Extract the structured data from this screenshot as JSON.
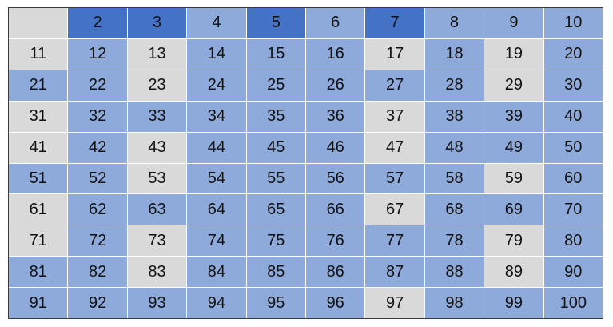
{
  "colors": {
    "prime": "#4472c4",
    "composite": "#8eaadb",
    "unmarked": "#d9d9d9"
  },
  "cells": [
    {
      "label": "",
      "status": "unmarked"
    },
    {
      "label": "2",
      "status": "prime"
    },
    {
      "label": "3",
      "status": "prime"
    },
    {
      "label": "4",
      "status": "composite"
    },
    {
      "label": "5",
      "status": "prime"
    },
    {
      "label": "6",
      "status": "composite"
    },
    {
      "label": "7",
      "status": "prime"
    },
    {
      "label": "8",
      "status": "composite"
    },
    {
      "label": "9",
      "status": "composite"
    },
    {
      "label": "10",
      "status": "composite"
    },
    {
      "label": "11",
      "status": "unmarked"
    },
    {
      "label": "12",
      "status": "composite"
    },
    {
      "label": "13",
      "status": "unmarked"
    },
    {
      "label": "14",
      "status": "composite"
    },
    {
      "label": "15",
      "status": "composite"
    },
    {
      "label": "16",
      "status": "composite"
    },
    {
      "label": "17",
      "status": "unmarked"
    },
    {
      "label": "18",
      "status": "composite"
    },
    {
      "label": "19",
      "status": "unmarked"
    },
    {
      "label": "20",
      "status": "composite"
    },
    {
      "label": "21",
      "status": "composite"
    },
    {
      "label": "22",
      "status": "composite"
    },
    {
      "label": "23",
      "status": "unmarked"
    },
    {
      "label": "24",
      "status": "composite"
    },
    {
      "label": "25",
      "status": "composite"
    },
    {
      "label": "26",
      "status": "composite"
    },
    {
      "label": "27",
      "status": "composite"
    },
    {
      "label": "28",
      "status": "composite"
    },
    {
      "label": "29",
      "status": "unmarked"
    },
    {
      "label": "30",
      "status": "composite"
    },
    {
      "label": "31",
      "status": "unmarked"
    },
    {
      "label": "32",
      "status": "composite"
    },
    {
      "label": "33",
      "status": "composite"
    },
    {
      "label": "34",
      "status": "composite"
    },
    {
      "label": "35",
      "status": "composite"
    },
    {
      "label": "36",
      "status": "composite"
    },
    {
      "label": "37",
      "status": "unmarked"
    },
    {
      "label": "38",
      "status": "composite"
    },
    {
      "label": "39",
      "status": "composite"
    },
    {
      "label": "40",
      "status": "composite"
    },
    {
      "label": "41",
      "status": "unmarked"
    },
    {
      "label": "42",
      "status": "composite"
    },
    {
      "label": "43",
      "status": "unmarked"
    },
    {
      "label": "44",
      "status": "composite"
    },
    {
      "label": "45",
      "status": "composite"
    },
    {
      "label": "46",
      "status": "composite"
    },
    {
      "label": "47",
      "status": "unmarked"
    },
    {
      "label": "48",
      "status": "composite"
    },
    {
      "label": "49",
      "status": "composite"
    },
    {
      "label": "50",
      "status": "composite"
    },
    {
      "label": "51",
      "status": "composite"
    },
    {
      "label": "52",
      "status": "composite"
    },
    {
      "label": "53",
      "status": "unmarked"
    },
    {
      "label": "54",
      "status": "composite"
    },
    {
      "label": "55",
      "status": "composite"
    },
    {
      "label": "56",
      "status": "composite"
    },
    {
      "label": "57",
      "status": "composite"
    },
    {
      "label": "58",
      "status": "composite"
    },
    {
      "label": "59",
      "status": "unmarked"
    },
    {
      "label": "60",
      "status": "composite"
    },
    {
      "label": "61",
      "status": "unmarked"
    },
    {
      "label": "62",
      "status": "composite"
    },
    {
      "label": "63",
      "status": "composite"
    },
    {
      "label": "64",
      "status": "composite"
    },
    {
      "label": "65",
      "status": "composite"
    },
    {
      "label": "66",
      "status": "composite"
    },
    {
      "label": "67",
      "status": "unmarked"
    },
    {
      "label": "68",
      "status": "composite"
    },
    {
      "label": "69",
      "status": "composite"
    },
    {
      "label": "70",
      "status": "composite"
    },
    {
      "label": "71",
      "status": "unmarked"
    },
    {
      "label": "72",
      "status": "composite"
    },
    {
      "label": "73",
      "status": "unmarked"
    },
    {
      "label": "74",
      "status": "composite"
    },
    {
      "label": "75",
      "status": "composite"
    },
    {
      "label": "76",
      "status": "composite"
    },
    {
      "label": "77",
      "status": "composite"
    },
    {
      "label": "78",
      "status": "composite"
    },
    {
      "label": "79",
      "status": "unmarked"
    },
    {
      "label": "80",
      "status": "composite"
    },
    {
      "label": "81",
      "status": "composite"
    },
    {
      "label": "82",
      "status": "composite"
    },
    {
      "label": "83",
      "status": "unmarked"
    },
    {
      "label": "84",
      "status": "composite"
    },
    {
      "label": "85",
      "status": "composite"
    },
    {
      "label": "86",
      "status": "composite"
    },
    {
      "label": "87",
      "status": "composite"
    },
    {
      "label": "88",
      "status": "composite"
    },
    {
      "label": "89",
      "status": "unmarked"
    },
    {
      "label": "90",
      "status": "composite"
    },
    {
      "label": "91",
      "status": "composite"
    },
    {
      "label": "92",
      "status": "composite"
    },
    {
      "label": "93",
      "status": "composite"
    },
    {
      "label": "94",
      "status": "composite"
    },
    {
      "label": "95",
      "status": "composite"
    },
    {
      "label": "96",
      "status": "composite"
    },
    {
      "label": "97",
      "status": "unmarked"
    },
    {
      "label": "98",
      "status": "composite"
    },
    {
      "label": "99",
      "status": "composite"
    },
    {
      "label": "100",
      "status": "composite"
    }
  ]
}
